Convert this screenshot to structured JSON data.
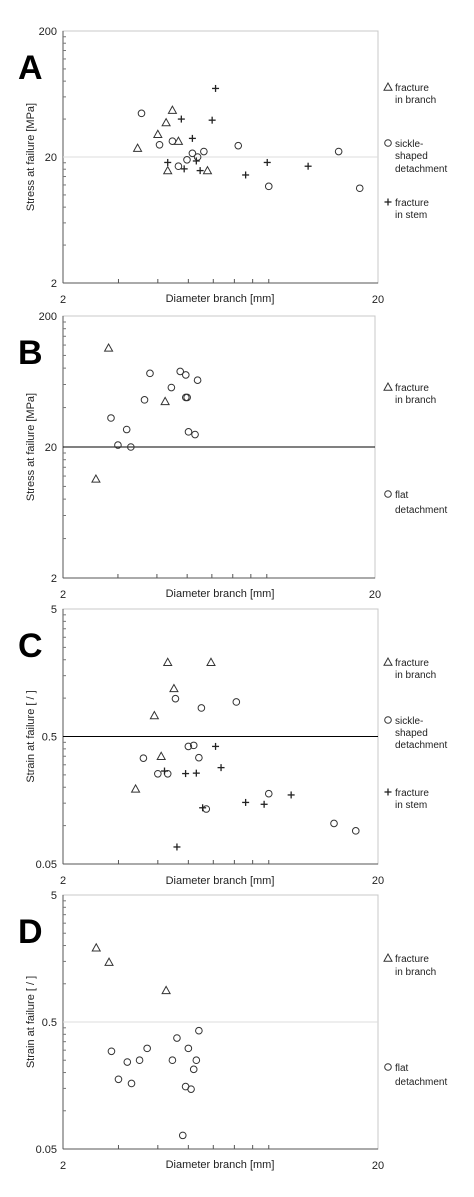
{
  "chart_data": [
    {
      "type": "scatter",
      "panel_label": "A",
      "x_scale": "log",
      "y_scale": "log",
      "xlabel": "Diameter branch [mm]",
      "ylabel": "Stress at failure [MPa]",
      "xlim": [
        2,
        20
      ],
      "ylim": [
        2,
        200
      ],
      "x_ticks": [
        "2",
        "20"
      ],
      "y_ticks": [
        "2",
        "20",
        "200"
      ],
      "reference_line": 20,
      "reference_line_color": "#dddddd",
      "legend_position": "right",
      "series": [
        {
          "name": "fracture in branch",
          "marker": "triangle",
          "legend_lines": [
            "fracture",
            "in branch"
          ],
          "x": [
            3.45,
            4.0,
            4.25,
            4.45,
            4.65,
            4.3,
            5.75
          ],
          "y": [
            23.5,
            30.3,
            37.5,
            47.1,
            26.7,
            15.6,
            15.6
          ]
        },
        {
          "name": "sickle-shaped detachment",
          "marker": "circle",
          "legend_lines": [
            "sickle-",
            "shaped",
            "detachment"
          ],
          "x": [
            3.55,
            4.05,
            4.45,
            4.65,
            4.95,
            5.15,
            5.35,
            5.6,
            7.2,
            9.0,
            15.0,
            17.5
          ],
          "y": [
            44.4,
            25.0,
            26.7,
            16.9,
            19.0,
            21.4,
            20.0,
            22.1,
            24.6,
            11.7,
            22.1,
            11.3
          ]
        },
        {
          "name": "fracture in stem",
          "marker": "plus",
          "legend_lines": [
            "fracture",
            "in stem"
          ],
          "x": [
            4.3,
            4.75,
            4.85,
            5.15,
            5.3,
            5.45,
            5.95,
            6.1,
            7.6,
            8.9,
            12.0
          ],
          "y": [
            18.1,
            40.0,
            16.1,
            28.1,
            18.6,
            15.6,
            39.2,
            70.0,
            14.4,
            18.1,
            16.9
          ]
        }
      ]
    },
    {
      "type": "scatter",
      "panel_label": "B",
      "x_scale": "log",
      "y_scale": "log",
      "xlabel": "Diameter branch [mm]",
      "ylabel": "Stress at failure [MPa]",
      "xlim": [
        2,
        20
      ],
      "ylim": [
        2,
        200
      ],
      "x_ticks": [
        "2",
        "20"
      ],
      "y_ticks": [
        "2",
        "20",
        "200"
      ],
      "reference_line": 20,
      "reference_line_color": "#000000",
      "legend_position": "right",
      "series": [
        {
          "name": "fracture in branch",
          "marker": "triangle",
          "legend_lines": [
            "fracture",
            "in branch"
          ],
          "x": [
            2.55,
            2.8,
            4.25
          ],
          "y": [
            11.4,
            114.0,
            44.6
          ]
        },
        {
          "name": "flat detachment",
          "marker": "circle",
          "legend_lines": [
            "flat",
            "detachment"
          ],
          "x": [
            2.85,
            3.0,
            3.2,
            3.3,
            3.65,
            3.8,
            4.45,
            4.75,
            4.95,
            4.95,
            5.0,
            5.05,
            5.3,
            5.4
          ],
          "y": [
            33.3,
            20.7,
            27.2,
            20.0,
            45.8,
            73.0,
            56.9,
            75.5,
            71.0,
            47.8,
            47.8,
            26.1,
            24.9,
            64.7
          ]
        }
      ]
    },
    {
      "type": "scatter",
      "panel_label": "C",
      "x_scale": "log",
      "y_scale": "log",
      "xlabel": "Diameter branch [mm]",
      "ylabel": "Strain at failure [ / ]",
      "xlim": [
        2,
        20
      ],
      "ylim": [
        0.05,
        5
      ],
      "x_ticks": [
        "2",
        "20"
      ],
      "y_ticks": [
        "0.05",
        "0.5",
        "5"
      ],
      "reference_line": 0.5,
      "reference_line_color": "#000000",
      "legend_position": "right",
      "series": [
        {
          "name": "fracture in branch",
          "marker": "triangle",
          "legend_lines": [
            "fracture",
            "in branch"
          ],
          "x": [
            3.4,
            3.9,
            4.1,
            4.3,
            4.5,
            5.9
          ],
          "y": [
            0.194,
            0.73,
            0.35,
            1.91,
            1.19,
            1.91
          ]
        },
        {
          "name": "sickle-shaped detachment",
          "marker": "circle",
          "legend_lines": [
            "sickle-",
            "shaped",
            "detachment"
          ],
          "x": [
            3.6,
            4.0,
            4.3,
            4.55,
            5.0,
            5.2,
            5.4,
            5.5,
            5.7,
            7.1,
            9.0,
            14.5,
            17.0
          ],
          "y": [
            0.338,
            0.255,
            0.255,
            0.99,
            0.418,
            0.426,
            0.341,
            0.837,
            0.135,
            0.933,
            0.178,
            0.104,
            0.091
          ]
        },
        {
          "name": "fracture in stem",
          "marker": "plus",
          "legend_lines": [
            "fracture",
            "in stem"
          ],
          "x": [
            4.2,
            4.6,
            4.9,
            5.3,
            5.55,
            6.1,
            6.35,
            7.6,
            8.7,
            10.6
          ],
          "y": [
            0.268,
            0.068,
            0.256,
            0.258,
            0.138,
            0.418,
            0.285,
            0.152,
            0.147,
            0.174
          ]
        }
      ]
    },
    {
      "type": "scatter",
      "panel_label": "D",
      "x_scale": "log",
      "y_scale": "log",
      "xlabel": "Diameter branch [mm]",
      "ylabel": "Strain at failure [ / ]",
      "xlim": [
        2,
        20
      ],
      "ylim": [
        0.05,
        5
      ],
      "x_ticks": [
        "2",
        "20"
      ],
      "y_ticks": [
        "0.05",
        "0.5",
        "5"
      ],
      "reference_line": 0.5,
      "reference_line_color": "#dddddd",
      "legend_position": "right",
      "series": [
        {
          "name": "fracture in branch",
          "marker": "triangle",
          "legend_lines": [
            "fracture",
            "in branch"
          ],
          "x": [
            2.55,
            2.8,
            4.25
          ],
          "y": [
            1.92,
            1.48,
            0.887
          ]
        },
        {
          "name": "flat detachment",
          "marker": "circle",
          "legend_lines": [
            "flat",
            "detachment"
          ],
          "x": [
            2.85,
            3.0,
            3.2,
            3.3,
            3.5,
            3.7,
            4.45,
            4.6,
            4.8,
            4.9,
            5.0,
            5.1,
            5.2,
            5.3,
            5.4
          ],
          "y": [
            0.294,
            0.177,
            0.242,
            0.164,
            0.25,
            0.31,
            0.25,
            0.374,
            0.064,
            0.155,
            0.31,
            0.148,
            0.212,
            0.25,
            0.427
          ]
        }
      ]
    }
  ]
}
